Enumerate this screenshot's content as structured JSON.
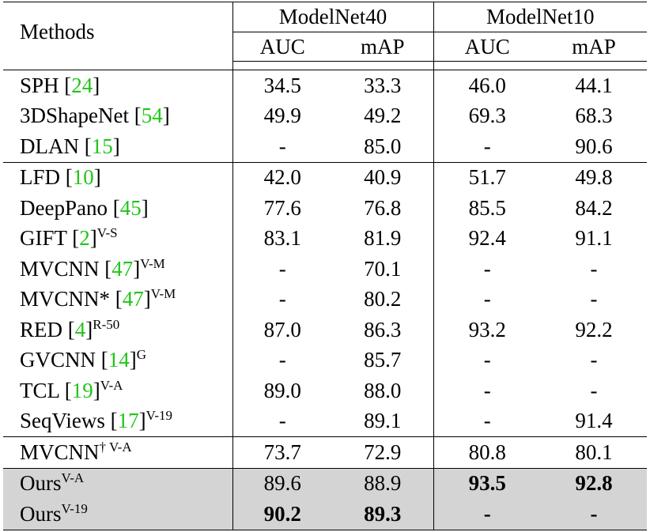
{
  "header": {
    "methods": "Methods",
    "group1": "ModelNet40",
    "group2": "ModelNet10",
    "auc": "AUC",
    "map": "mAP"
  },
  "rows": [
    {
      "name": "SPH",
      "cite": "24",
      "sup": "",
      "v": [
        "34.5",
        "33.3",
        "46.0",
        "44.1"
      ]
    },
    {
      "name": "3DShapeNet",
      "cite": "54",
      "sup": "",
      "v": [
        "49.9",
        "49.2",
        "69.3",
        "68.3"
      ]
    },
    {
      "name": "DLAN",
      "cite": "15",
      "sup": "",
      "v": [
        "-",
        "85.0",
        "-",
        "90.6"
      ]
    },
    {
      "name": "LFD",
      "cite": "10",
      "sup": "",
      "v": [
        "42.0",
        "40.9",
        "51.7",
        "49.8"
      ]
    },
    {
      "name": "DeepPano",
      "cite": "45",
      "sup": "",
      "v": [
        "77.6",
        "76.8",
        "85.5",
        "84.2"
      ]
    },
    {
      "name": "GIFT",
      "cite": "2",
      "sup": "V-S",
      "v": [
        "83.1",
        "81.9",
        "92.4",
        "91.1"
      ]
    },
    {
      "name": "MVCNN",
      "cite": "47",
      "sup": "V-M",
      "v": [
        "-",
        "70.1",
        "-",
        "-"
      ]
    },
    {
      "name": "MVCNN*",
      "cite": "47",
      "sup": "V-M",
      "v": [
        "-",
        "80.2",
        "-",
        "-"
      ]
    },
    {
      "name": "RED",
      "cite": "4",
      "sup": "R-50",
      "v": [
        "87.0",
        "86.3",
        "93.2",
        "92.2"
      ]
    },
    {
      "name": "GVCNN",
      "cite": "14",
      "sup": "G",
      "v": [
        "-",
        "85.7",
        "-",
        "-"
      ]
    },
    {
      "name": "TCL",
      "cite": "19",
      "sup": "V-A",
      "v": [
        "89.0",
        "88.0",
        "-",
        "-"
      ]
    },
    {
      "name": "SeqViews",
      "cite": "17",
      "sup": "V-19",
      "v": [
        "-",
        "89.1",
        "-",
        "91.4"
      ]
    },
    {
      "name": "MVCNN",
      "cite": "",
      "sup": "† V-A",
      "v": [
        "73.7",
        "72.9",
        "80.8",
        "80.1"
      ]
    },
    {
      "name": "Ours",
      "cite": "",
      "sup": "V-A",
      "v": [
        "89.6",
        "88.9",
        "93.5",
        "92.8"
      ]
    },
    {
      "name": "Ours",
      "cite": "",
      "sup": "V-19",
      "v": [
        "90.2",
        "89.3",
        "-",
        "-"
      ]
    }
  ]
}
